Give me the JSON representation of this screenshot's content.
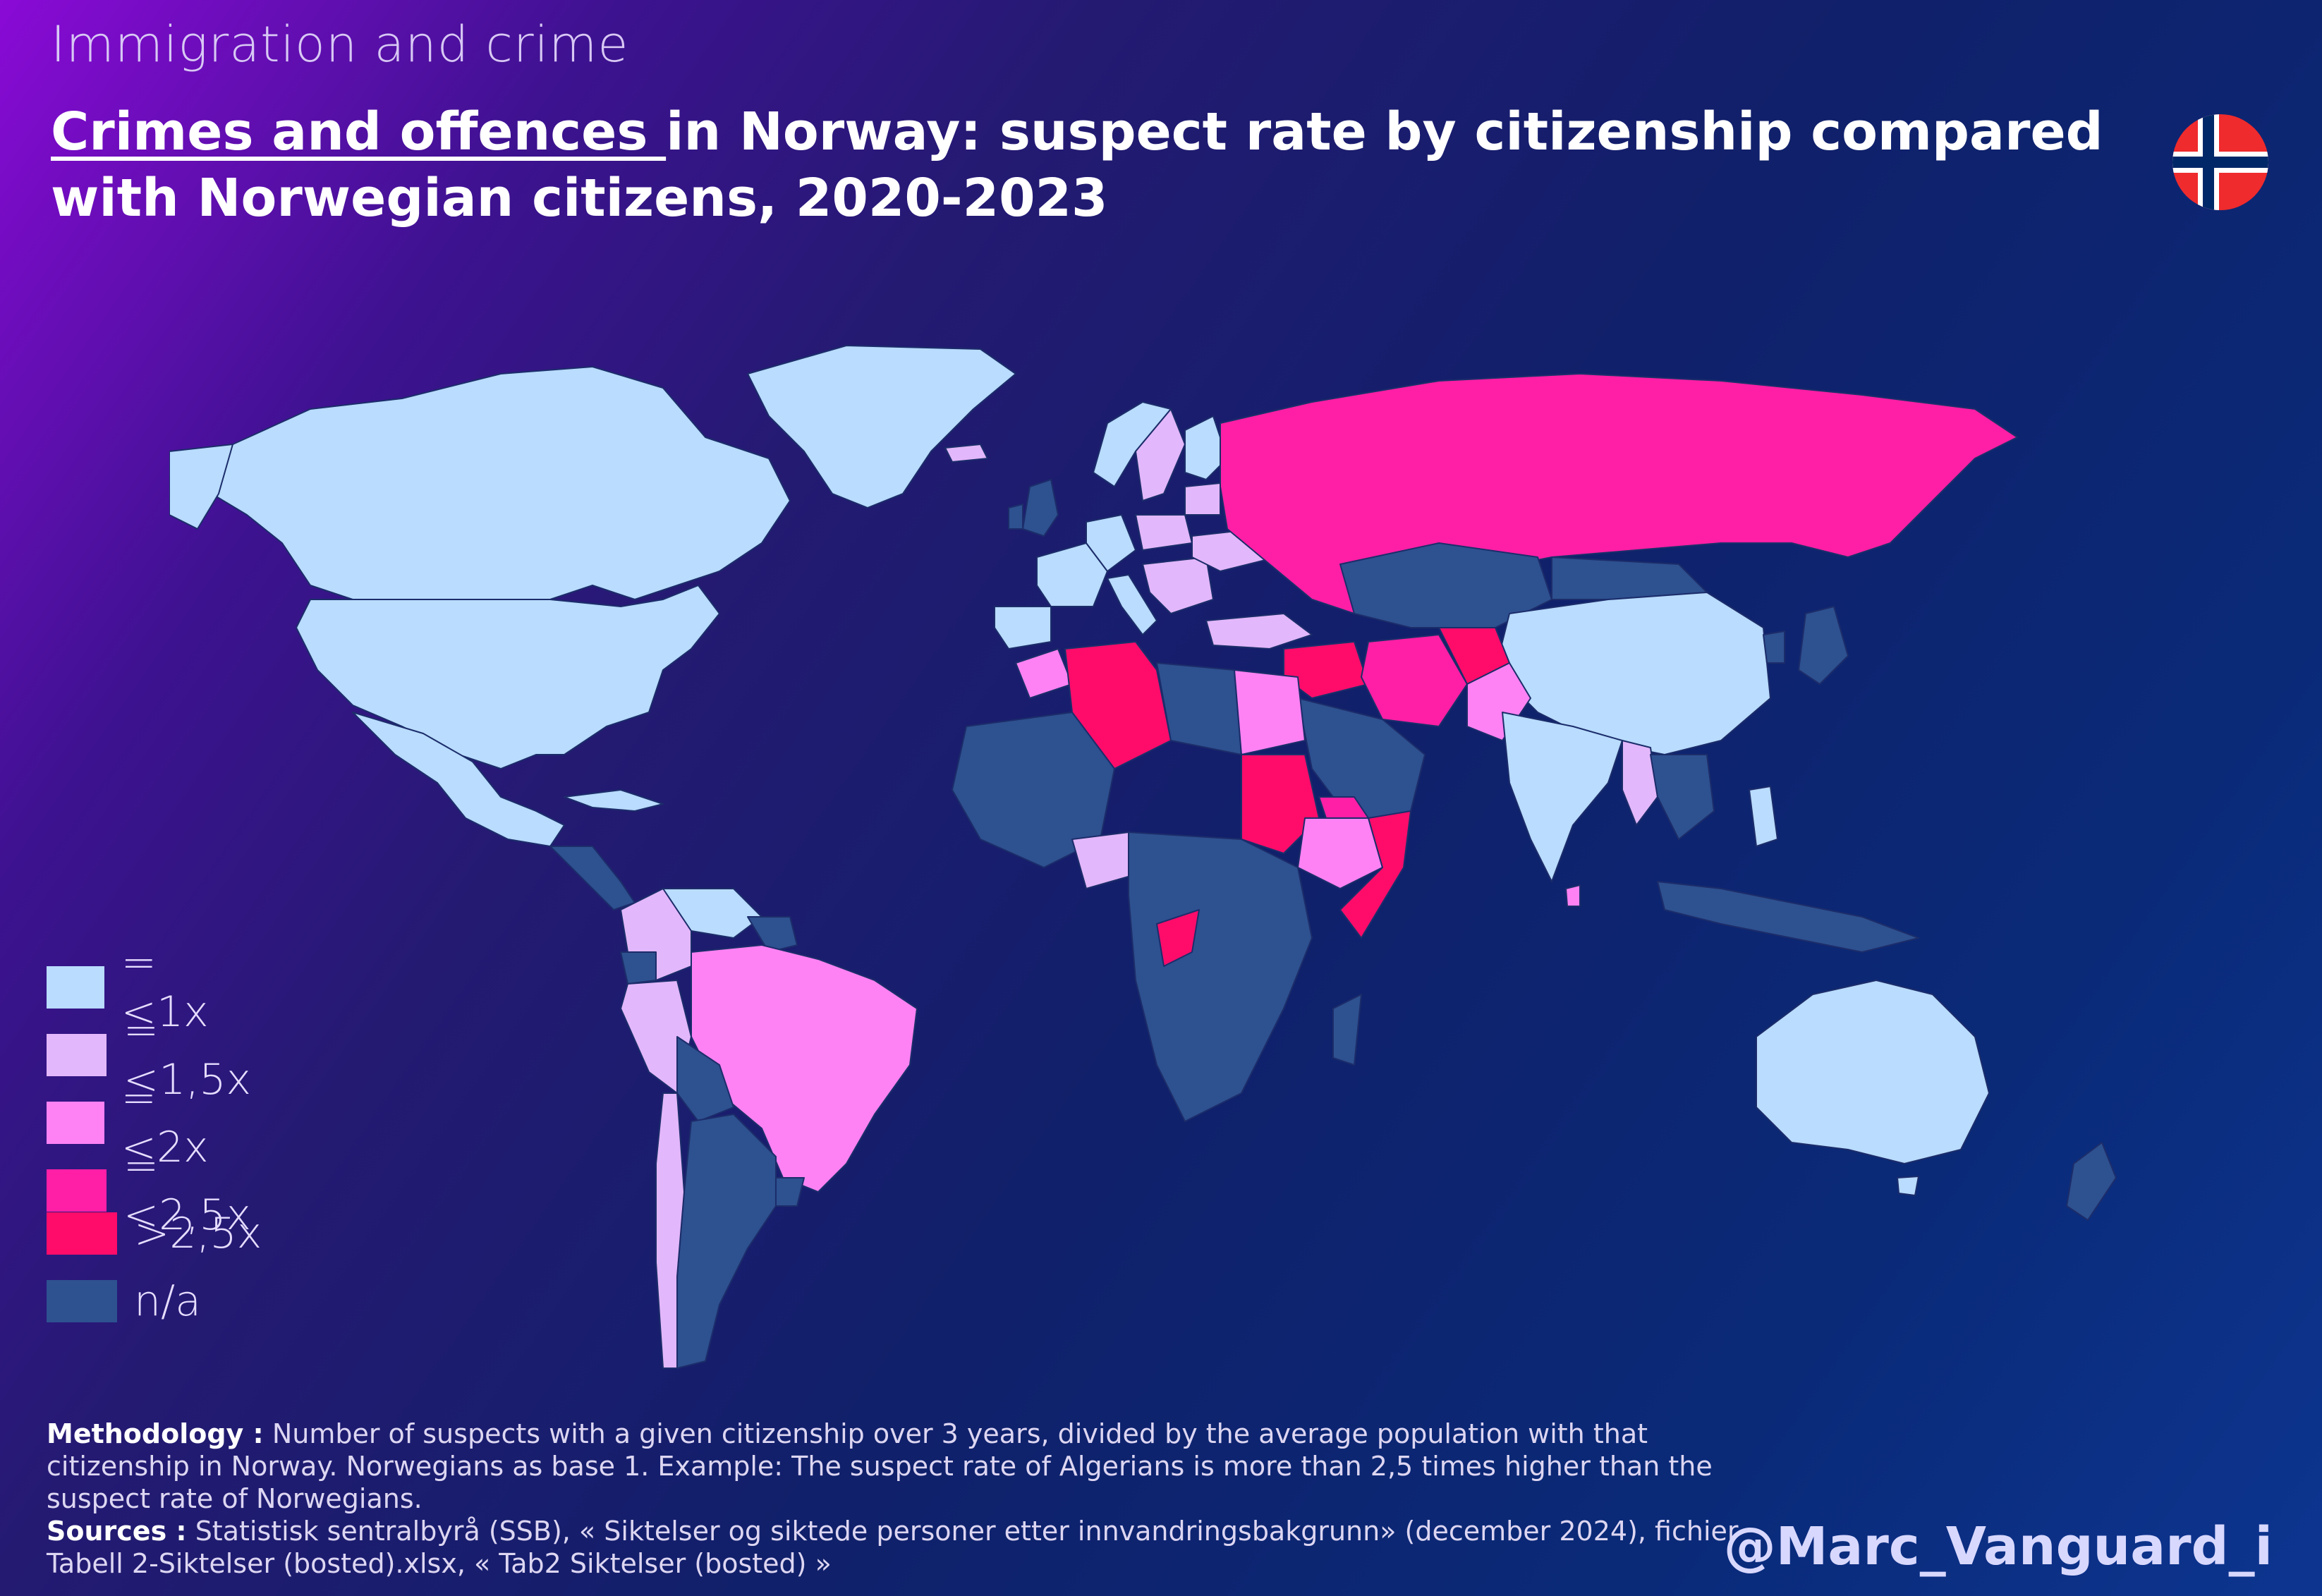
{
  "header": {
    "supertitle": "Immigration and crime",
    "title_underlined": "Crimes and offences ",
    "title_rest": "in Norway: suspect rate by citizenship compared with Norwegian citizens, 2020-2023",
    "flag_icon": "norway-flag-icon"
  },
  "colors": {
    "background_start": "#8a0ad6",
    "background_end": "#0d3590",
    "ocean": "#0a1f60",
    "le_1x": "#b9dcff",
    "le_1_5x": "#e3b7fb",
    "le_2x": "#ff82f4",
    "le_2_5x": "#ff1fa6",
    "gt_2_5x": "#ff0c6b",
    "na": "#2e5190",
    "border": "#1c2d6a"
  },
  "legend": [
    {
      "label": "=<1x",
      "color": "#b9dcff"
    },
    {
      "label": "=<1,5x",
      "color": "#e3b7fb"
    },
    {
      "label": "=<2x",
      "color": "#ff82f4"
    },
    {
      "label": "=<2,5x",
      "color": "#ff1fa6"
    },
    {
      "label": ">2,5x",
      "color": "#ff0c6b"
    },
    {
      "label": "n/a",
      "color": "#2e5190"
    }
  ],
  "notes": {
    "methodology_label": "Methodology :",
    "methodology_text": " Number of suspects with a given citizenship over 3 years, divided by the average population with that citizenship in Norway. Norwegians as base 1. Example: The suspect rate of Algerians is more than 2,5 times higher than the suspect rate of Norwegians.",
    "sources_label": "Sources :",
    "sources_text": " Statistisk sentralbyrå (SSB), « Siktelser og siktede personer etter innvandringsbakgrunn»  (december 2024), fichier Tabell 2-Siktelser (bosted).xlsx, « Tab2 Siktelser (bosted) »"
  },
  "credit": "@Marc_Vanguard_i"
}
